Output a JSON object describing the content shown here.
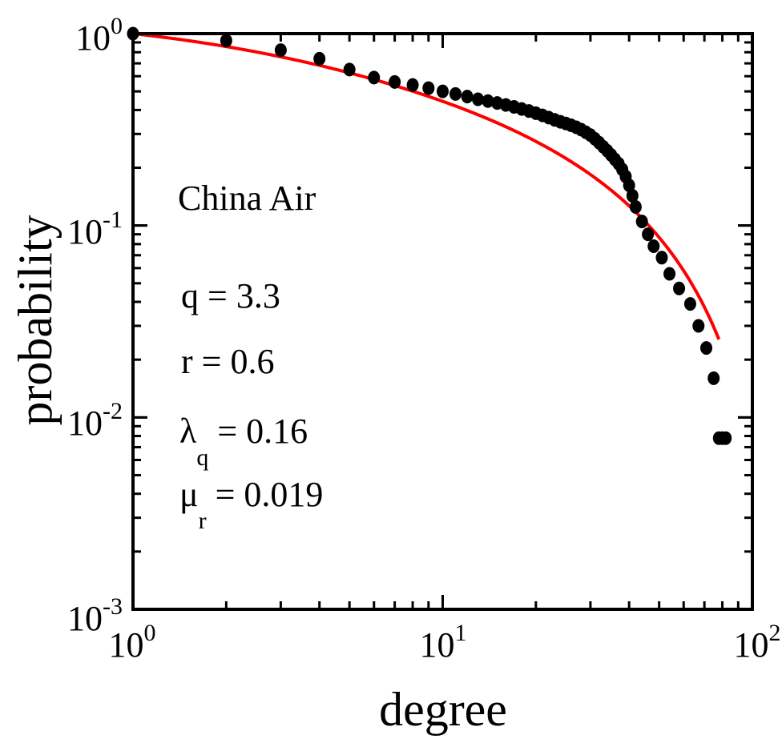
{
  "chart_data": {
    "type": "scatter",
    "xlabel": "degree",
    "ylabel": "probability",
    "xscale": "log",
    "yscale": "log",
    "xlim": [
      1,
      100
    ],
    "ylim": [
      0.001,
      1
    ],
    "x_ticks": [
      {
        "base": "10",
        "exp": "0"
      },
      {
        "base": "10",
        "exp": "1"
      },
      {
        "base": "10",
        "exp": "2"
      }
    ],
    "y_ticks": [
      {
        "base": "10",
        "exp": "0"
      },
      {
        "base": "10",
        "exp": "-1"
      },
      {
        "base": "10",
        "exp": "-2"
      },
      {
        "base": "10",
        "exp": "-3"
      }
    ],
    "grid": false,
    "colors": {
      "points": "#000000",
      "fit": "#ff0000"
    },
    "series": [
      {
        "marker": "filled-circle",
        "points": [
          [
            1,
            1.0
          ],
          [
            2,
            0.92
          ],
          [
            3,
            0.82
          ],
          [
            4,
            0.74
          ],
          [
            5,
            0.65
          ],
          [
            6,
            0.59
          ],
          [
            7,
            0.56
          ],
          [
            8,
            0.54
          ],
          [
            9,
            0.52
          ],
          [
            10,
            0.5
          ],
          [
            11,
            0.485
          ],
          [
            12,
            0.47
          ],
          [
            13,
            0.455
          ],
          [
            14,
            0.445
          ],
          [
            15,
            0.435
          ],
          [
            16,
            0.425
          ],
          [
            17,
            0.415
          ],
          [
            18,
            0.405
          ],
          [
            19,
            0.395
          ],
          [
            20,
            0.385
          ],
          [
            21,
            0.375
          ],
          [
            22,
            0.365
          ],
          [
            23,
            0.355
          ],
          [
            24,
            0.347
          ],
          [
            25,
            0.34
          ],
          [
            26,
            0.333
          ],
          [
            27,
            0.325
          ],
          [
            28,
            0.316
          ],
          [
            29,
            0.306
          ],
          [
            30,
            0.296
          ],
          [
            31,
            0.283
          ],
          [
            32,
            0.27
          ],
          [
            33,
            0.257
          ],
          [
            34,
            0.245
          ],
          [
            35,
            0.233
          ],
          [
            36,
            0.221
          ],
          [
            37,
            0.21
          ],
          [
            38,
            0.196
          ],
          [
            39,
            0.18
          ],
          [
            40,
            0.162
          ],
          [
            41,
            0.143
          ],
          [
            42,
            0.125
          ],
          [
            44,
            0.105
          ],
          [
            46,
            0.09
          ],
          [
            48,
            0.078
          ],
          [
            51,
            0.068
          ],
          [
            54,
            0.056
          ],
          [
            58,
            0.047
          ],
          [
            63,
            0.039
          ],
          [
            67,
            0.03
          ],
          [
            71,
            0.023
          ],
          [
            75,
            0.016
          ],
          [
            78,
            0.0078
          ],
          [
            80,
            0.0078
          ],
          [
            82,
            0.0078
          ]
        ]
      },
      {
        "marker": "line",
        "fit": true,
        "q": 3.3,
        "r": 0.6,
        "lambda_q": 0.16,
        "mu_r": 0.019,
        "x_range": [
          1,
          78
        ]
      }
    ],
    "annotations": {
      "dataset": "China Air",
      "q": {
        "sym": "q",
        "sub": "",
        "text": " = 3.3"
      },
      "r": {
        "sym": "r",
        "sub": "",
        "text": " = 0.6"
      },
      "lambda": {
        "sym": "λ",
        "sub": "q",
        "text": " = 0.16"
      },
      "mu": {
        "sym": "μ",
        "sub": "r",
        "text": " = 0.019"
      }
    }
  }
}
